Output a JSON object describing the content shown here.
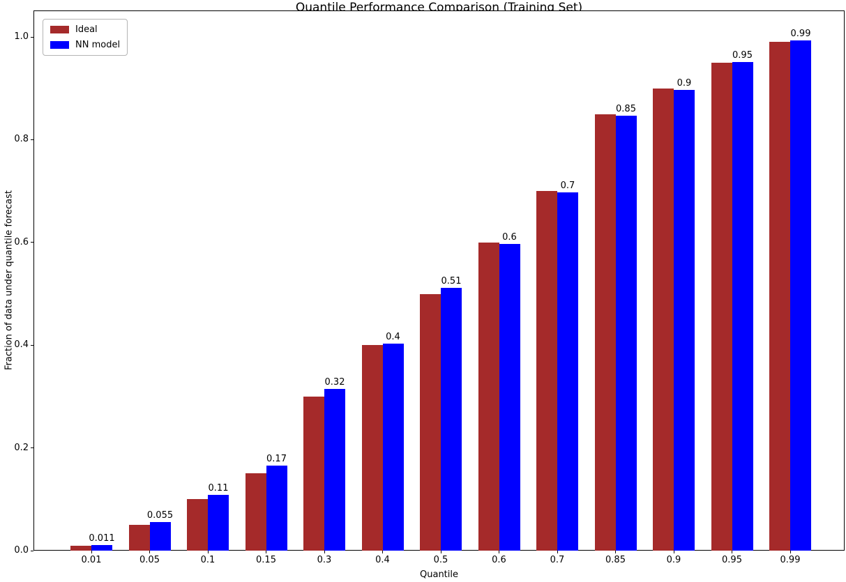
{
  "figure": {
    "background": "#ffffff",
    "axis_color": "#000000",
    "text_color": "#000000"
  },
  "chart_data": {
    "type": "bar",
    "title": "Quantile Performance Comparison (Training Set)",
    "xlabel": "Quantile",
    "ylabel": "Fraction of data under quantile forecast",
    "categories": [
      "0.01",
      "0.05",
      "0.1",
      "0.15",
      "0.3",
      "0.4",
      "0.5",
      "0.6",
      "0.7",
      "0.85",
      "0.9",
      "0.95",
      "0.99"
    ],
    "series": [
      {
        "name": "Ideal",
        "color": "#A52A2A",
        "values": [
          0.01,
          0.05,
          0.1,
          0.15,
          0.3,
          0.4,
          0.5,
          0.6,
          0.7,
          0.85,
          0.9,
          0.95,
          0.99
        ]
      },
      {
        "name": "NN model",
        "color": "#0000FF",
        "values": [
          0.011,
          0.055,
          0.108,
          0.166,
          0.315,
          0.403,
          0.512,
          0.597,
          0.698,
          0.846,
          0.897,
          0.951,
          0.993
        ]
      }
    ],
    "bar_labels": [
      "0.011",
      "0.055",
      "0.11",
      "0.17",
      "0.32",
      "0.4",
      "0.51",
      "0.6",
      "0.7",
      "0.85",
      "0.9",
      "0.95",
      "0.99"
    ],
    "ytick_values": [
      0,
      0.2,
      0.4,
      0.6,
      0.8,
      1.0
    ],
    "ytick_labels": [
      "0.0",
      "0.2",
      "0.4",
      "0.6",
      "0.8",
      "1.0"
    ],
    "ylim": [
      0,
      1.05
    ],
    "grid": false,
    "legend_position": "upper left"
  }
}
